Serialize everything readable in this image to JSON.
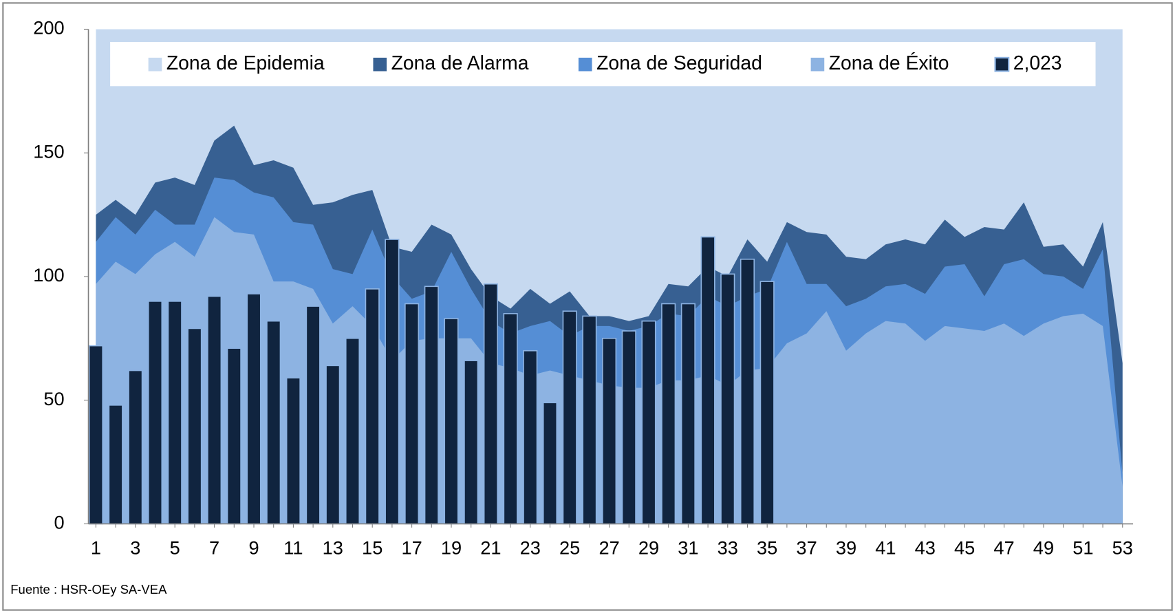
{
  "chart_data": {
    "type": "area",
    "source": "Fuente : HSR-OEy SA-VEA",
    "categories": [
      1,
      null,
      3,
      null,
      5,
      null,
      7,
      null,
      9,
      null,
      11,
      null,
      13,
      null,
      15,
      null,
      17,
      null,
      19,
      null,
      21,
      null,
      23,
      null,
      25,
      null,
      27,
      null,
      29,
      null,
      31,
      null,
      33,
      null,
      35,
      null,
      37,
      null,
      39,
      null,
      41,
      null,
      43,
      null,
      45,
      null,
      47,
      null,
      49,
      null,
      51,
      null,
      53
    ],
    "ylim": [
      0,
      200
    ],
    "yticks": [
      0,
      50,
      100,
      150,
      200
    ],
    "grid": false,
    "legend": "top",
    "series": [
      {
        "name": "Zona de Epidemia",
        "type": "area",
        "color": "#c6d9f0",
        "values": [
          200,
          200,
          200,
          200,
          200,
          200,
          200,
          200,
          200,
          200,
          200,
          200,
          200,
          200,
          200,
          200,
          200,
          200,
          200,
          200,
          200,
          200,
          200,
          200,
          200,
          200,
          200,
          200,
          200,
          200,
          200,
          200,
          200,
          200,
          200,
          200,
          200,
          200,
          200,
          200,
          200,
          200,
          200,
          200,
          200,
          200,
          200,
          200,
          200,
          200,
          200,
          200,
          200
        ]
      },
      {
        "name": "Zona de Alarma",
        "type": "area",
        "color": "#376092",
        "values": [
          125,
          131,
          125,
          138,
          140,
          137,
          155,
          161,
          145,
          147,
          144,
          129,
          130,
          133,
          135,
          112,
          110,
          121,
          117,
          103,
          92,
          87,
          95,
          89,
          94,
          84,
          84,
          82,
          84,
          97,
          96,
          104,
          100,
          115,
          106,
          122,
          118,
          117,
          108,
          107,
          113,
          115,
          113,
          123,
          116,
          120,
          119,
          130,
          112,
          113,
          104,
          122,
          65
        ]
      },
      {
        "name": "Zona de Seguridad",
        "type": "area",
        "color": "#558ed5",
        "values": [
          114,
          124,
          117,
          127,
          121,
          121,
          140,
          139,
          134,
          132,
          122,
          121,
          103,
          101,
          119,
          100,
          91,
          94,
          110,
          95,
          82,
          77,
          80,
          82,
          76,
          80,
          80,
          78,
          80,
          85,
          84,
          92,
          88,
          92,
          95,
          114,
          97,
          97,
          88,
          91,
          96,
          97,
          93,
          104,
          105,
          92,
          105,
          107,
          101,
          100,
          95,
          111,
          20
        ]
      },
      {
        "name": "Zona de Éxito",
        "type": "area",
        "color": "#8db3e2",
        "values": [
          97,
          106,
          101,
          109,
          114,
          108,
          124,
          118,
          117,
          98,
          98,
          95,
          81,
          88,
          80,
          66,
          74,
          75,
          75,
          75,
          65,
          63,
          60,
          62,
          60,
          58,
          56,
          55,
          55,
          58,
          58,
          60,
          56,
          62,
          63,
          73,
          77,
          86,
          70,
          77,
          82,
          81,
          74,
          80,
          79,
          78,
          81,
          76,
          81,
          84,
          85,
          80,
          15
        ]
      },
      {
        "name": "2,023",
        "type": "bar",
        "color": "#10243f",
        "values": [
          72,
          48,
          62,
          90,
          90,
          79,
          92,
          71,
          93,
          82,
          59,
          88,
          64,
          75,
          95,
          115,
          89,
          96,
          83,
          66,
          97,
          85,
          70,
          49,
          86,
          84,
          75,
          78,
          82,
          89,
          89,
          116,
          101,
          107,
          98,
          null,
          null,
          null,
          null,
          null,
          null,
          null,
          null,
          null,
          null,
          null,
          null,
          null,
          null,
          null,
          null,
          null,
          null
        ]
      }
    ]
  }
}
